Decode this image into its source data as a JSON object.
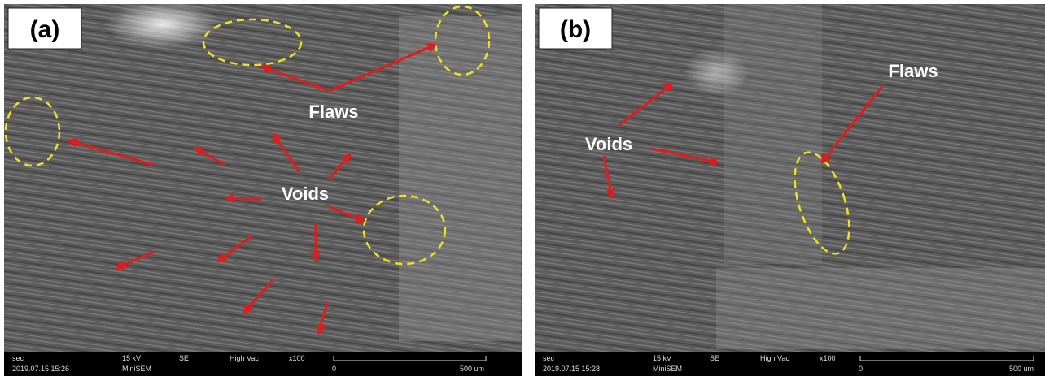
{
  "panels": [
    {
      "label": "(a)",
      "annotations": [
        "Flaws",
        "Voids"
      ],
      "footer": {
        "mode": "sec",
        "date": "2019.07.15 15:26",
        "voltage": "15 kV",
        "device": "MiniSEM",
        "detector": "SE",
        "vacuum": "High Vac",
        "magnification": "x100",
        "scale_start": "0",
        "scale_end": "500 um"
      }
    },
    {
      "label": "(b)",
      "annotations": [
        "Voids",
        "Flaws"
      ],
      "footer": {
        "mode": "sec",
        "date": "2019.07.15 15:28",
        "voltage": "15 kV",
        "device": "MiniSEM",
        "detector": "SE",
        "vacuum": "High Vac",
        "magnification": "x100",
        "scale_start": "0",
        "scale_end": "500 um"
      }
    }
  ]
}
